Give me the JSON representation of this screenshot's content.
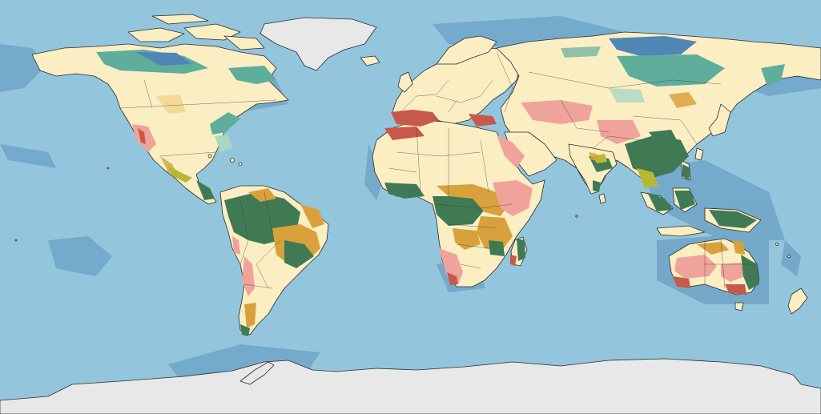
{
  "map": {
    "projection": "equirectangular",
    "colors": {
      "ocean": "#93c5dc",
      "shelf": "#6fa5c8",
      "land": "#fbeec3",
      "ice": "#e8e8e8",
      "tropical_forest": "#3f7a54",
      "dry_forest": "#d9a13c",
      "mediterranean": "#c7594b",
      "shrubland": "#f0a39a",
      "tundra_teal": "#5fae9c",
      "boreal_blue": "#4f86b6",
      "mangrove": "#b8b832",
      "montane": "#a9d7c2"
    }
  }
}
